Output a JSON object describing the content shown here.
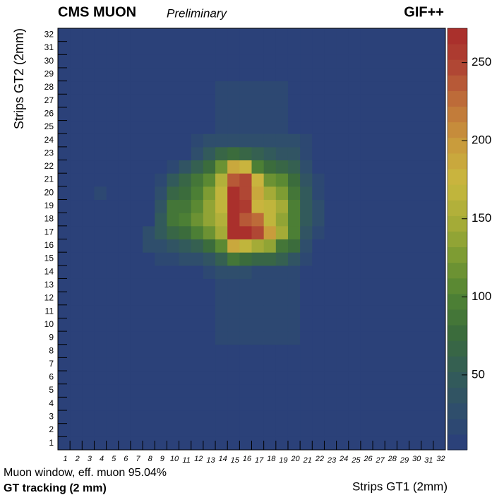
{
  "chart_data": {
    "type": "heatmap",
    "title": "CMS MUON",
    "subtitle": "Preliminary",
    "label_right": "GIF++",
    "xlabel": "Strips GT1 (2mm)",
    "ylabel": "Strips GT2 (2mm)",
    "annotations": [
      "Muon window, eff. muon 95.04%",
      "GT tracking (2 mm)"
    ],
    "x": [
      1,
      2,
      3,
      4,
      5,
      6,
      7,
      8,
      9,
      10,
      11,
      12,
      13,
      14,
      15,
      16,
      17,
      18,
      19,
      20,
      21,
      22,
      23,
      24,
      25,
      26,
      27,
      28,
      29,
      30,
      31,
      32
    ],
    "y": [
      1,
      2,
      3,
      4,
      5,
      6,
      7,
      8,
      9,
      10,
      11,
      12,
      13,
      14,
      15,
      16,
      17,
      18,
      19,
      20,
      21,
      22,
      23,
      24,
      25,
      26,
      27,
      28,
      29,
      30,
      31,
      32
    ],
    "z": [
      [
        5,
        5,
        5,
        5,
        5,
        5,
        5,
        5,
        5,
        5,
        5,
        5,
        5,
        5,
        5,
        5,
        5,
        5,
        5,
        5,
        5,
        5,
        5,
        5,
        5,
        5,
        5,
        5,
        5,
        5,
        5,
        5
      ],
      [
        5,
        5,
        5,
        5,
        5,
        5,
        5,
        5,
        5,
        5,
        5,
        5,
        5,
        5,
        5,
        5,
        5,
        5,
        5,
        5,
        5,
        5,
        5,
        5,
        5,
        5,
        5,
        5,
        5,
        5,
        5,
        5
      ],
      [
        5,
        5,
        5,
        5,
        5,
        5,
        5,
        5,
        5,
        5,
        5,
        5,
        5,
        5,
        5,
        5,
        5,
        5,
        5,
        5,
        5,
        5,
        5,
        5,
        5,
        5,
        5,
        5,
        5,
        5,
        5,
        5
      ],
      [
        5,
        5,
        5,
        5,
        5,
        5,
        5,
        5,
        5,
        5,
        5,
        5,
        5,
        5,
        5,
        5,
        5,
        5,
        5,
        5,
        5,
        5,
        5,
        5,
        5,
        5,
        5,
        5,
        5,
        5,
        5,
        5
      ],
      [
        5,
        5,
        5,
        5,
        5,
        5,
        5,
        5,
        5,
        5,
        5,
        5,
        5,
        5,
        5,
        5,
        5,
        5,
        5,
        5,
        5,
        5,
        5,
        5,
        5,
        5,
        5,
        5,
        5,
        5,
        5,
        5
      ],
      [
        5,
        5,
        5,
        5,
        5,
        5,
        5,
        5,
        5,
        5,
        5,
        5,
        5,
        5,
        5,
        5,
        5,
        5,
        5,
        5,
        5,
        5,
        5,
        5,
        5,
        5,
        5,
        5,
        5,
        5,
        5,
        5
      ],
      [
        5,
        5,
        5,
        5,
        5,
        5,
        5,
        5,
        5,
        5,
        5,
        5,
        5,
        5,
        5,
        5,
        5,
        5,
        5,
        5,
        5,
        5,
        5,
        5,
        5,
        5,
        5,
        5,
        5,
        5,
        5,
        5
      ],
      [
        5,
        5,
        5,
        5,
        5,
        5,
        5,
        5,
        5,
        5,
        5,
        5,
        5,
        5,
        5,
        5,
        5,
        5,
        5,
        5,
        5,
        5,
        5,
        5,
        5,
        5,
        5,
        5,
        5,
        5,
        5,
        5
      ],
      [
        5,
        5,
        5,
        5,
        5,
        5,
        5,
        5,
        5,
        5,
        5,
        5,
        5,
        12,
        12,
        12,
        12,
        12,
        12,
        12,
        5,
        5,
        5,
        5,
        5,
        5,
        5,
        5,
        5,
        5,
        5,
        5
      ],
      [
        5,
        5,
        5,
        5,
        5,
        5,
        5,
        5,
        5,
        5,
        5,
        5,
        5,
        12,
        12,
        12,
        12,
        12,
        12,
        12,
        5,
        5,
        5,
        5,
        5,
        5,
        5,
        5,
        5,
        5,
        5,
        5
      ],
      [
        5,
        5,
        5,
        5,
        5,
        5,
        5,
        5,
        5,
        5,
        5,
        5,
        5,
        12,
        12,
        12,
        12,
        12,
        12,
        12,
        5,
        5,
        5,
        5,
        5,
        5,
        5,
        5,
        5,
        5,
        5,
        5
      ],
      [
        5,
        5,
        5,
        5,
        5,
        5,
        5,
        5,
        5,
        5,
        5,
        5,
        5,
        12,
        12,
        12,
        12,
        12,
        12,
        12,
        5,
        5,
        5,
        5,
        5,
        5,
        5,
        5,
        5,
        5,
        5,
        5
      ],
      [
        5,
        5,
        5,
        5,
        5,
        5,
        5,
        5,
        5,
        5,
        5,
        5,
        5,
        12,
        12,
        12,
        12,
        12,
        12,
        12,
        5,
        5,
        5,
        5,
        5,
        5,
        5,
        5,
        5,
        5,
        5,
        5
      ],
      [
        5,
        5,
        5,
        5,
        5,
        5,
        5,
        5,
        5,
        5,
        5,
        5,
        20,
        30,
        30,
        25,
        20,
        20,
        20,
        15,
        5,
        5,
        5,
        5,
        5,
        5,
        5,
        5,
        5,
        5,
        5,
        5
      ],
      [
        5,
        5,
        5,
        5,
        5,
        5,
        5,
        5,
        15,
        20,
        25,
        30,
        40,
        60,
        90,
        80,
        70,
        70,
        60,
        40,
        20,
        5,
        5,
        5,
        5,
        5,
        5,
        5,
        5,
        5,
        5,
        5
      ],
      [
        5,
        5,
        5,
        5,
        5,
        5,
        5,
        25,
        30,
        40,
        50,
        60,
        80,
        110,
        190,
        170,
        150,
        140,
        90,
        80,
        30,
        5,
        5,
        5,
        5,
        5,
        5,
        5,
        5,
        5,
        5,
        5
      ],
      [
        5,
        5,
        5,
        5,
        5,
        5,
        5,
        30,
        50,
        70,
        80,
        100,
        120,
        150,
        265,
        265,
        250,
        200,
        150,
        100,
        40,
        20,
        5,
        5,
        5,
        5,
        5,
        5,
        5,
        5,
        5,
        5
      ],
      [
        5,
        5,
        5,
        5,
        5,
        5,
        5,
        5,
        45,
        90,
        100,
        120,
        140,
        160,
        268,
        240,
        230,
        170,
        140,
        100,
        45,
        25,
        5,
        5,
        5,
        5,
        5,
        5,
        5,
        5,
        5,
        5
      ],
      [
        5,
        5,
        5,
        5,
        5,
        5,
        5,
        5,
        40,
        90,
        90,
        110,
        140,
        165,
        265,
        260,
        180,
        170,
        150,
        100,
        50,
        25,
        5,
        5,
        5,
        5,
        5,
        5,
        5,
        5,
        5,
        5
      ],
      [
        5,
        5,
        5,
        15,
        5,
        5,
        5,
        5,
        30,
        70,
        80,
        100,
        130,
        170,
        265,
        245,
        190,
        150,
        130,
        90,
        50,
        20,
        5,
        5,
        5,
        5,
        5,
        5,
        5,
        5,
        5,
        5
      ],
      [
        5,
        5,
        5,
        5,
        5,
        5,
        5,
        5,
        20,
        50,
        70,
        90,
        110,
        160,
        240,
        250,
        180,
        120,
        110,
        80,
        40,
        20,
        5,
        5,
        5,
        5,
        5,
        5,
        5,
        5,
        5,
        5
      ],
      [
        5,
        5,
        5,
        5,
        5,
        5,
        5,
        5,
        5,
        20,
        35,
        60,
        80,
        120,
        185,
        180,
        100,
        80,
        70,
        55,
        30,
        5,
        5,
        5,
        5,
        5,
        5,
        5,
        5,
        5,
        5,
        5
      ],
      [
        5,
        5,
        5,
        5,
        5,
        5,
        5,
        5,
        5,
        5,
        5,
        30,
        45,
        70,
        80,
        70,
        55,
        45,
        40,
        35,
        20,
        5,
        5,
        5,
        5,
        5,
        5,
        5,
        5,
        5,
        5,
        5
      ],
      [
        5,
        5,
        5,
        5,
        5,
        5,
        5,
        5,
        5,
        5,
        5,
        15,
        30,
        30,
        30,
        30,
        30,
        30,
        30,
        30,
        15,
        5,
        5,
        5,
        5,
        5,
        5,
        5,
        5,
        5,
        5,
        5
      ],
      [
        5,
        5,
        5,
        5,
        5,
        5,
        5,
        5,
        5,
        5,
        5,
        5,
        5,
        18,
        18,
        18,
        18,
        18,
        18,
        5,
        5,
        5,
        5,
        5,
        5,
        5,
        5,
        5,
        5,
        5,
        5,
        5
      ],
      [
        5,
        5,
        5,
        5,
        5,
        5,
        5,
        5,
        5,
        5,
        5,
        5,
        5,
        12,
        12,
        12,
        12,
        12,
        12,
        5,
        5,
        5,
        5,
        5,
        5,
        5,
        5,
        5,
        5,
        5,
        5,
        5
      ],
      [
        5,
        5,
        5,
        5,
        5,
        5,
        5,
        5,
        5,
        5,
        5,
        5,
        5,
        12,
        12,
        12,
        12,
        12,
        12,
        5,
        5,
        5,
        5,
        5,
        5,
        5,
        5,
        5,
        5,
        5,
        5,
        5
      ],
      [
        5,
        5,
        5,
        5,
        5,
        5,
        5,
        5,
        5,
        5,
        5,
        5,
        5,
        12,
        12,
        12,
        12,
        12,
        12,
        5,
        5,
        5,
        5,
        5,
        5,
        5,
        5,
        5,
        5,
        5,
        5,
        5
      ],
      [
        5,
        5,
        5,
        5,
        5,
        5,
        5,
        5,
        5,
        5,
        5,
        5,
        5,
        5,
        5,
        5,
        5,
        5,
        5,
        5,
        5,
        5,
        5,
        5,
        5,
        5,
        5,
        5,
        5,
        5,
        5,
        5
      ],
      [
        5,
        5,
        5,
        5,
        5,
        5,
        5,
        5,
        5,
        5,
        5,
        5,
        5,
        5,
        5,
        5,
        5,
        5,
        5,
        5,
        5,
        5,
        5,
        5,
        5,
        5,
        5,
        5,
        5,
        5,
        5,
        5
      ],
      [
        5,
        5,
        5,
        5,
        5,
        5,
        5,
        5,
        5,
        5,
        5,
        5,
        5,
        5,
        5,
        5,
        5,
        5,
        5,
        5,
        5,
        5,
        5,
        5,
        5,
        5,
        5,
        5,
        5,
        5,
        5,
        5
      ],
      [
        5,
        5,
        5,
        5,
        5,
        5,
        5,
        5,
        5,
        5,
        5,
        5,
        5,
        5,
        5,
        5,
        5,
        5,
        5,
        5,
        5,
        5,
        5,
        5,
        5,
        5,
        5,
        5,
        5,
        5,
        5,
        5
      ]
    ],
    "zlim": [
      2,
      272
    ],
    "zticks": [
      50,
      100,
      150,
      200,
      250
    ],
    "colormap": [
      "#2a3e7c",
      "#2f4e6c",
      "#335c58",
      "#3a6b3c",
      "#4f8234",
      "#7a9a32",
      "#a8ad38",
      "#c9b83e",
      "#c99a3c",
      "#c0723a",
      "#b04634",
      "#a82a2a"
    ]
  }
}
